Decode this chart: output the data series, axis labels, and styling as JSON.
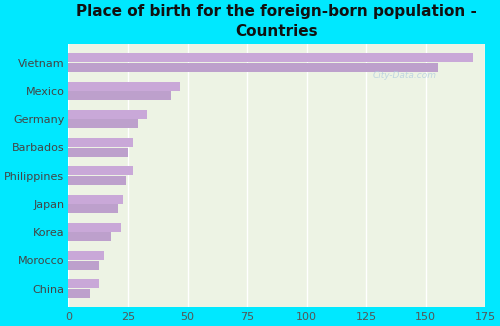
{
  "title": "Place of birth for the foreign-born population -\nCountries",
  "categories": [
    "Vietnam",
    "Mexico",
    "Germany",
    "Barbados",
    "Philippines",
    "Japan",
    "Korea",
    "Morocco",
    "China"
  ],
  "values1": [
    170,
    47,
    33,
    27,
    27,
    23,
    22,
    15,
    13
  ],
  "values2": [
    155,
    43,
    29,
    25,
    24,
    21,
    18,
    13,
    9
  ],
  "bar_color1": "#c9a8d8",
  "bar_color2": "#bda0cc",
  "background_outer": "#00e8ff",
  "background_inner": "#edf3e4",
  "xlim": [
    0,
    175
  ],
  "xticks": [
    0,
    25,
    50,
    75,
    100,
    125,
    150,
    175
  ],
  "title_fontsize": 11,
  "tick_label_fontsize": 8,
  "bar_height": 0.32,
  "watermark_text": "City-Data.com",
  "watermark_color": "#b0cce0"
}
